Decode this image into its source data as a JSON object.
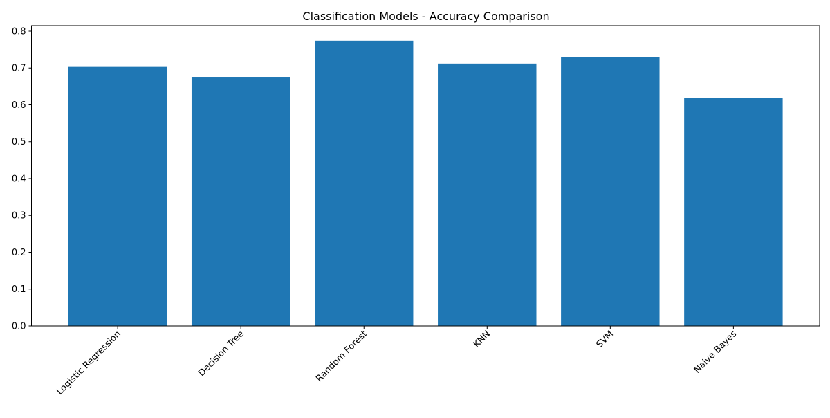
{
  "chart_data": {
    "type": "bar",
    "title": "Classification Models - Accuracy Comparison",
    "xlabel": "",
    "ylabel": "",
    "categories": [
      "Logistic Regression",
      "Decision Tree",
      "Random Forest",
      "KNN",
      "SVM",
      "Naive Bayes"
    ],
    "values": [
      0.703,
      0.676,
      0.774,
      0.712,
      0.729,
      0.619
    ],
    "ylim": [
      0,
      0.815
    ],
    "yticks": [
      0.0,
      0.1,
      0.2,
      0.3,
      0.4,
      0.5,
      0.6,
      0.7,
      0.8
    ],
    "ytick_labels": [
      "0.0",
      "0.1",
      "0.2",
      "0.3",
      "0.4",
      "0.5",
      "0.6",
      "0.7",
      "0.8"
    ],
    "bar_color": "#1f77b4",
    "grid": false,
    "legend": "none"
  }
}
